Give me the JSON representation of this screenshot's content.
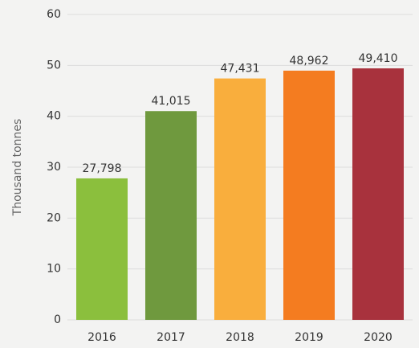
{
  "chart_data": {
    "type": "bar",
    "ylabel": "Thousand tonnes",
    "categories": [
      "2016",
      "2017",
      "2018",
      "2019",
      "2020"
    ],
    "values": [
      27.798,
      41.015,
      47.431,
      48.962,
      49.41
    ],
    "value_labels": [
      "27,798",
      "41,015",
      "47,431",
      "48,962",
      "49,410"
    ],
    "colors": [
      "#8bbf3d",
      "#6f993e",
      "#f9ae3d",
      "#f47c20",
      "#a8323d"
    ],
    "ylim": [
      0,
      60
    ],
    "yticks": [
      0,
      10,
      20,
      30,
      40,
      50,
      60
    ],
    "grid": true
  }
}
